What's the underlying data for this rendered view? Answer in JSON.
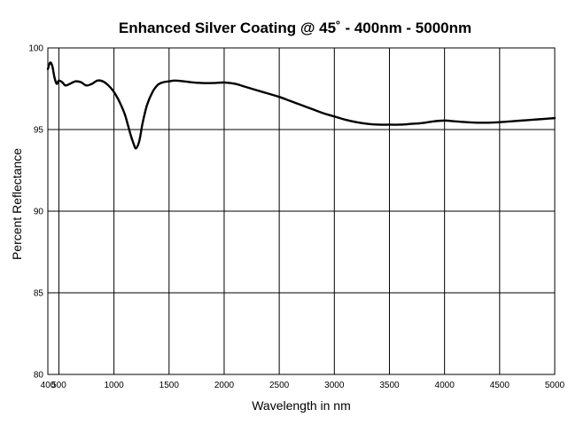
{
  "chart_data": {
    "type": "line",
    "title": "Enhanced Silver Coating @ 45˚ - 400nm - 5000nm",
    "xlabel": "Wavelength in nm",
    "ylabel": "Percent Reflectance",
    "xlim": [
      400,
      5000
    ],
    "ylim": [
      80,
      100
    ],
    "xticks": [
      400,
      500,
      1000,
      1500,
      2000,
      2500,
      3000,
      3500,
      4000,
      4500,
      5000
    ],
    "yticks": [
      80,
      85,
      90,
      95,
      100
    ],
    "grid": true,
    "series": [
      {
        "x": [
          400,
          420,
          440,
          460,
          480,
          500,
          530,
          560,
          600,
          650,
          700,
          750,
          800,
          850,
          900,
          950,
          1000,
          1050,
          1100,
          1150,
          1180,
          1200,
          1230,
          1260,
          1300,
          1350,
          1400,
          1450,
          1500,
          1550,
          1600,
          1700,
          1800,
          1900,
          2000,
          2100,
          2200,
          2300,
          2400,
          2500,
          2600,
          2700,
          2800,
          2900,
          3000,
          3100,
          3200,
          3300,
          3400,
          3500,
          3600,
          3700,
          3800,
          3900,
          4000,
          4100,
          4200,
          4300,
          4400,
          4500,
          4600,
          4700,
          4800,
          4900,
          5000
        ],
        "y": [
          98.7,
          99.1,
          98.9,
          98.2,
          97.8,
          98.0,
          97.9,
          97.7,
          97.8,
          97.95,
          97.9,
          97.7,
          97.8,
          98.0,
          97.95,
          97.7,
          97.3,
          96.7,
          95.9,
          94.7,
          94.1,
          93.85,
          94.3,
          95.4,
          96.5,
          97.3,
          97.75,
          97.9,
          97.95,
          98.0,
          97.98,
          97.9,
          97.85,
          97.85,
          97.88,
          97.8,
          97.6,
          97.4,
          97.2,
          97.0,
          96.75,
          96.5,
          96.25,
          96.0,
          95.8,
          95.6,
          95.45,
          95.35,
          95.3,
          95.3,
          95.3,
          95.35,
          95.4,
          95.5,
          95.55,
          95.5,
          95.45,
          95.42,
          95.42,
          95.45,
          95.5,
          95.55,
          95.6,
          95.65,
          95.7
        ]
      }
    ]
  }
}
